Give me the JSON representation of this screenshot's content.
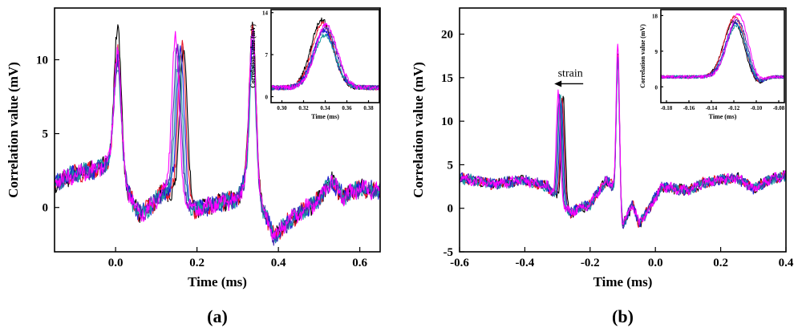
{
  "series_colors": [
    "#000000",
    "#e8192c",
    "#1c1cd6",
    "#1a9aa0",
    "#4b2db0",
    "#ff00ff"
  ],
  "panel_labels": [
    "(a)",
    "(b)"
  ],
  "chart_data": [
    {
      "type": "line",
      "panel_label": "(a)",
      "xlabel": "Time (ms)",
      "ylabel": "Correlation value (mV)",
      "xlim": [
        -0.15,
        0.65
      ],
      "ylim": [
        -3,
        13.5
      ],
      "xticks": [
        0.0,
        0.2,
        0.4,
        0.6
      ],
      "xtick_labels": [
        "0.0",
        "0.2",
        "0.4",
        "0.6"
      ],
      "yticks": [
        0,
        5,
        10
      ],
      "ytick_labels": [
        "0",
        "5",
        "10"
      ],
      "baseline": [
        [
          -0.15,
          1.6
        ],
        [
          -0.1,
          2.3
        ],
        [
          -0.05,
          2.6
        ],
        [
          -0.02,
          3.0
        ],
        [
          0.03,
          1.0
        ],
        [
          0.06,
          -0.5
        ],
        [
          0.09,
          0.2
        ],
        [
          0.12,
          1.2
        ],
        [
          0.2,
          -0.2
        ],
        [
          0.25,
          0.3
        ],
        [
          0.3,
          0.6
        ],
        [
          0.32,
          1.8
        ],
        [
          0.36,
          0.0
        ],
        [
          0.39,
          -2.0
        ],
        [
          0.43,
          -0.8
        ],
        [
          0.5,
          0.5
        ],
        [
          0.53,
          1.8
        ],
        [
          0.56,
          0.7
        ],
        [
          0.6,
          1.3
        ],
        [
          0.65,
          1.1
        ]
      ],
      "peaks": [
        {
          "center": 0.005,
          "height": 10.5,
          "width": 0.009,
          "shift": 0.0
        },
        {
          "center": 0.157,
          "height": 10.8,
          "width": 0.009,
          "shift": -0.004
        },
        {
          "center": 0.337,
          "height": 11.2,
          "width": 0.008,
          "shift": 0.0
        }
      ],
      "peak_maxima_per_series": [
        [
          12.0,
          11.0,
          12.5
        ],
        [
          10.5,
          11.3,
          12.3
        ],
        [
          10.2,
          10.8,
          11.0
        ],
        [
          9.8,
          10.5,
          9.7
        ],
        [
          10.0,
          10.9,
          11.5
        ],
        [
          10.6,
          11.6,
          11.8
        ]
      ],
      "series": [
        {
          "color": "#000000"
        },
        {
          "color": "#e8192c"
        },
        {
          "color": "#1c1cd6"
        },
        {
          "color": "#1a9aa0"
        },
        {
          "color": "#4b2db0"
        },
        {
          "color": "#ff00ff"
        }
      ],
      "inset": {
        "xlabel": "Time (ms)",
        "ylabel": "Correlation value (mV)",
        "xlim": [
          0.29,
          0.39
        ],
        "ylim": [
          -1,
          14.5
        ],
        "xticks": [
          0.3,
          0.32,
          0.34,
          0.36,
          0.38
        ],
        "xtick_labels": [
          "0.30",
          "0.32",
          "0.34",
          "0.36",
          "0.38"
        ],
        "yticks": [
          0,
          7,
          14
        ],
        "ytick_labels": [
          "0",
          "7",
          "14"
        ],
        "peak_center": 0.339,
        "peak_width": 0.01,
        "peak_maxima": [
          12.8,
          12.3,
          11.0,
          10.2,
          11.5,
          12.0
        ],
        "baseline_value": 1.5
      }
    },
    {
      "type": "line",
      "panel_label": "(b)",
      "xlabel": "Time (ms)",
      "ylabel": "Correlation value (mV)",
      "xlim": [
        -0.6,
        0.4
      ],
      "ylim": [
        -5,
        23
      ],
      "xticks": [
        -0.6,
        -0.4,
        -0.2,
        0.0,
        0.2,
        0.4
      ],
      "xtick_labels": [
        "-0.6",
        "-0.4",
        "-0.2",
        "0.0",
        "0.2",
        "0.4"
      ],
      "yticks": [
        -5,
        0,
        5,
        10,
        15,
        20
      ],
      "ytick_labels": [
        "-5",
        "0",
        "5",
        "10",
        "15",
        "20"
      ],
      "annotation": {
        "text": "strain",
        "x": -0.29,
        "y": 14.3
      },
      "baseline": [
        [
          -0.6,
          3.5
        ],
        [
          -0.5,
          2.8
        ],
        [
          -0.4,
          3.2
        ],
        [
          -0.33,
          2.5
        ],
        [
          -0.26,
          -0.5
        ],
        [
          -0.2,
          0.5
        ],
        [
          -0.15,
          3.2
        ],
        [
          -0.13,
          2.5
        ],
        [
          -0.1,
          -2.0
        ],
        [
          -0.07,
          0.5
        ],
        [
          -0.05,
          -1.8
        ],
        [
          -0.02,
          0.0
        ],
        [
          0.02,
          2.5
        ],
        [
          0.1,
          2.0
        ],
        [
          0.15,
          3.0
        ],
        [
          0.25,
          3.5
        ],
        [
          0.3,
          2.2
        ],
        [
          0.35,
          3.3
        ],
        [
          0.4,
          3.8
        ]
      ],
      "peaks": [
        {
          "center": -0.29,
          "height": 9.5,
          "width": 0.006,
          "shift": -0.003
        },
        {
          "center": -0.115,
          "height": 15.0,
          "width": 0.005,
          "shift": 0.0
        }
      ],
      "peak_maxima_per_series": [
        [
          13.0,
          17.5
        ],
        [
          12.5,
          18.0
        ],
        [
          12.2,
          17.0
        ],
        [
          12.8,
          16.5
        ],
        [
          12.6,
          17.5
        ],
        [
          13.1,
          19.0
        ]
      ],
      "series": [
        {
          "color": "#000000"
        },
        {
          "color": "#e8192c"
        },
        {
          "color": "#1c1cd6"
        },
        {
          "color": "#1a9aa0"
        },
        {
          "color": "#4b2db0"
        },
        {
          "color": "#ff00ff"
        }
      ],
      "inset": {
        "xlabel": "Time (ms)",
        "ylabel": "Correlation value (mV)",
        "xlim": [
          -0.185,
          -0.075
        ],
        "ylim": [
          -4,
          19.5
        ],
        "xticks": [
          -0.18,
          -0.16,
          -0.14,
          -0.12,
          -0.1,
          -0.08
        ],
        "xtick_labels": [
          "-0.18",
          "-0.16",
          "-0.14",
          "-0.12",
          "-0.10",
          "-0.08"
        ],
        "yticks": [
          0,
          9,
          18
        ],
        "ytick_labels": [
          "0",
          "9",
          "18"
        ],
        "peak_center": -0.118,
        "peak_width": 0.009,
        "peak_maxima": [
          16.5,
          17.8,
          16.0,
          15.5,
          16.8,
          18.5
        ],
        "baseline_value": 2.5,
        "dip": {
          "center": -0.1,
          "depth": -2.0,
          "width": 0.006
        }
      }
    }
  ]
}
